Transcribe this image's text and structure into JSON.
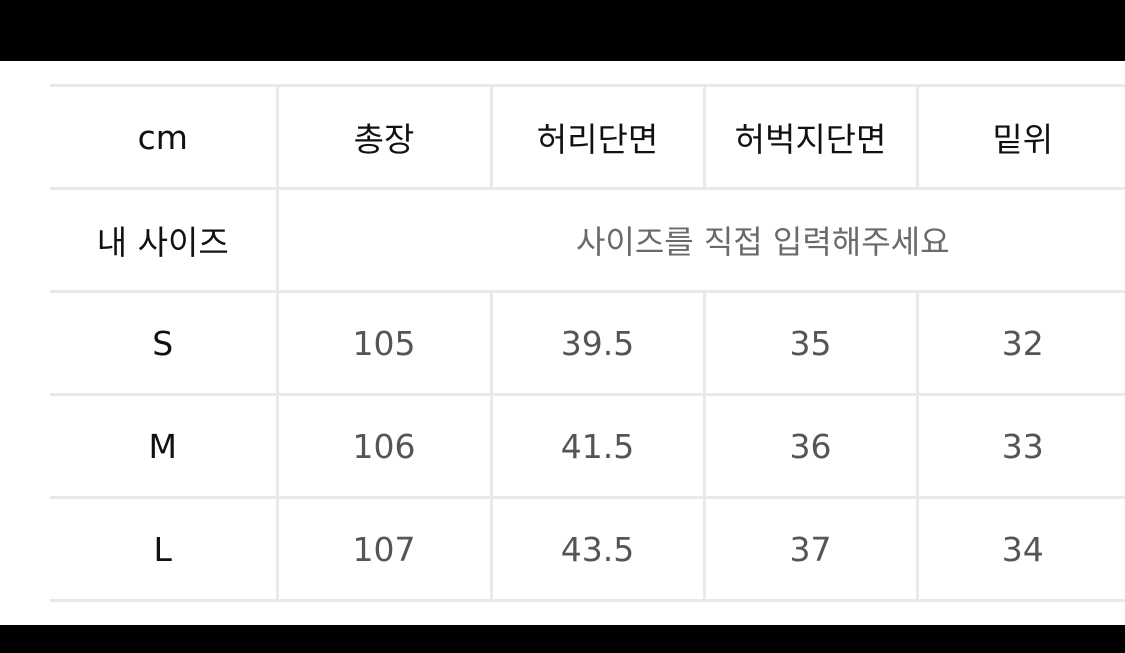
{
  "table": {
    "headers": [
      "cm",
      "총장",
      "허리단면",
      "허벅지단면",
      "밑위"
    ],
    "my_size": {
      "label": "내 사이즈",
      "placeholder": "사이즈를 직접 입력해주세요"
    },
    "rows": [
      {
        "size": "S",
        "values": [
          "105",
          "39.5",
          "35",
          "32"
        ]
      },
      {
        "size": "M",
        "values": [
          "106",
          "41.5",
          "36",
          "33"
        ]
      },
      {
        "size": "L",
        "values": [
          "107",
          "43.5",
          "37",
          "34"
        ]
      }
    ]
  }
}
